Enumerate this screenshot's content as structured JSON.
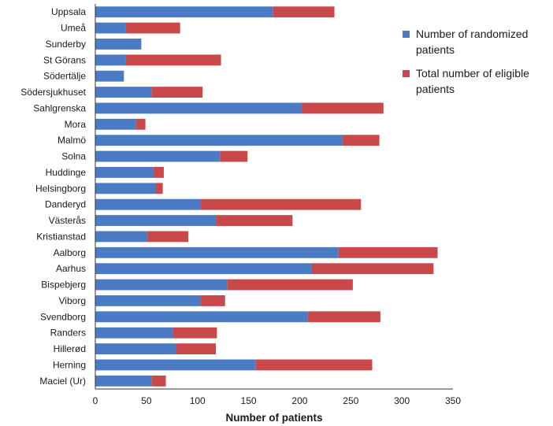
{
  "chart_data": {
    "type": "bar",
    "orientation": "horizontal",
    "stacked": true,
    "title": "",
    "xlabel": "Number of patients",
    "ylabel": "",
    "xlim": [
      0,
      350
    ],
    "xticks": [
      0,
      50,
      100,
      150,
      200,
      250,
      300,
      350
    ],
    "grid": false,
    "legend_position": "right",
    "categories": [
      "Uppsala",
      "Umeå",
      "Sunderby",
      "St Görans",
      "Södertälje",
      "Södersjukhuset",
      "Sahlgrenska",
      "Mora",
      "Malmö",
      "Solna",
      "Huddinge",
      "Helsingborg",
      "Danderyd",
      "Västerås",
      "Kristianstad",
      "Aalborg",
      "Aarhus",
      "Bispebjerg",
      "Viborg",
      "Svendborg",
      "Randers",
      "Hillerød",
      "Herning",
      "Maciel (Ur)"
    ],
    "series": [
      {
        "name": "Number of randomized patients",
        "legend_lines": [
          "Number of randomized",
          "patients"
        ],
        "color": "#4a7bc4",
        "values": [
          174,
          30,
          45,
          30,
          28,
          55,
          202,
          40,
          242,
          122,
          57,
          59,
          103,
          118,
          51,
          238,
          212,
          129,
          103,
          208,
          76,
          79,
          157,
          55
        ]
      },
      {
        "name": "Total number of eligible patients",
        "legend_lines": [
          "Total number of eligible",
          " patients"
        ],
        "color": "#c9484a",
        "values": [
          60,
          53,
          0,
          93,
          0,
          50,
          80,
          9,
          36,
          27,
          10,
          7,
          157,
          75,
          40,
          97,
          119,
          123,
          24,
          71,
          43,
          39,
          114,
          14
        ]
      }
    ]
  }
}
